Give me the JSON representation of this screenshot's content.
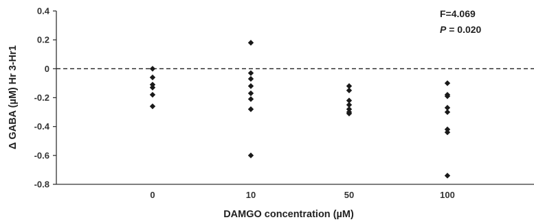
{
  "chart_data": {
    "type": "scatter",
    "xlabel": "DAMGO concentration (µM)",
    "ylabel": "Δ GABA (µM) Hr 3-Hr1",
    "ylim": [
      -0.8,
      0.4
    ],
    "yticks": [
      "0.4",
      "0.2",
      "0",
      "-0.2",
      "-0.4",
      "-0.6",
      "-0.8"
    ],
    "ytick_values": [
      0.4,
      0.2,
      0,
      -0.2,
      -0.4,
      -0.6,
      -0.8
    ],
    "categories": [
      "0",
      "10",
      "50",
      "100"
    ],
    "reference_line": {
      "y": 0,
      "style": "dashed"
    },
    "marker": "diamond",
    "marker_color": "#1a1a1a",
    "grid": false,
    "annotation": {
      "f_text": "F=4.069",
      "p_symbol": "P",
      "p_rest": " = 0.020"
    },
    "points": [
      {
        "x": "0",
        "y": 0.0
      },
      {
        "x": "0",
        "y": -0.06
      },
      {
        "x": "0",
        "y": -0.11
      },
      {
        "x": "0",
        "y": -0.13
      },
      {
        "x": "0",
        "y": -0.18
      },
      {
        "x": "0",
        "y": -0.26
      },
      {
        "x": "10",
        "y": 0.18
      },
      {
        "x": "10",
        "y": -0.03
      },
      {
        "x": "10",
        "y": -0.07
      },
      {
        "x": "10",
        "y": -0.12
      },
      {
        "x": "10",
        "y": -0.17
      },
      {
        "x": "10",
        "y": -0.21
      },
      {
        "x": "10",
        "y": -0.28
      },
      {
        "x": "10",
        "y": -0.6
      },
      {
        "x": "50",
        "y": -0.12
      },
      {
        "x": "50",
        "y": -0.15
      },
      {
        "x": "50",
        "y": -0.22
      },
      {
        "x": "50",
        "y": -0.25
      },
      {
        "x": "50",
        "y": -0.28
      },
      {
        "x": "50",
        "y": -0.3
      },
      {
        "x": "50",
        "y": -0.31
      },
      {
        "x": "100",
        "y": -0.1
      },
      {
        "x": "100",
        "y": -0.18
      },
      {
        "x": "100",
        "y": -0.19
      },
      {
        "x": "100",
        "y": -0.27
      },
      {
        "x": "100",
        "y": -0.3
      },
      {
        "x": "100",
        "y": -0.42
      },
      {
        "x": "100",
        "y": -0.44
      },
      {
        "x": "100",
        "y": -0.74
      }
    ]
  }
}
